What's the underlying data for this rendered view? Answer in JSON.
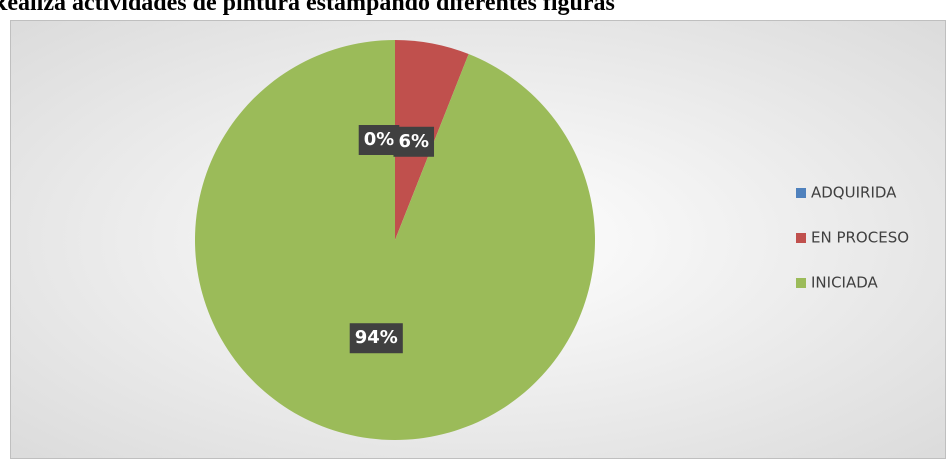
{
  "chart_data": {
    "type": "pie",
    "title": "Realiza actividades de pintura estampando diferentes figuras",
    "categories": [
      "ADQUIRIDA",
      "EN PROCESO",
      "INICIADA"
    ],
    "values": [
      0,
      6,
      94
    ],
    "value_labels": [
      "0%",
      "6%",
      "94%"
    ],
    "colors": [
      "#4f81bd",
      "#c0504d",
      "#9bbb59"
    ],
    "legend": "right"
  }
}
